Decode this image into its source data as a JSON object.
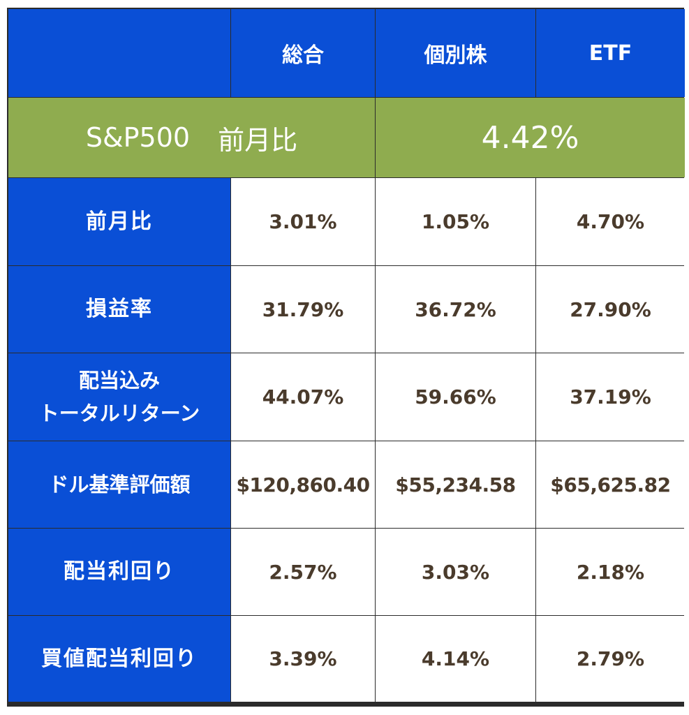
{
  "header": {
    "col_total": "総合",
    "col_stocks": "個別株",
    "col_etf": "ETF"
  },
  "benchmark": {
    "name": "S&P500",
    "label": "前月比",
    "value": "4.42%"
  },
  "rows": [
    {
      "label": "前月比",
      "total": "3.01%",
      "stocks": "1.05%",
      "etf": "4.70%"
    },
    {
      "label": "損益率",
      "total": "31.79%",
      "stocks": "36.72%",
      "etf": "27.90%"
    },
    {
      "label": "配当込み\nトータルリターン",
      "total": "44.07%",
      "stocks": "59.66%",
      "etf": "37.19%"
    },
    {
      "label": "ドル基準評価額",
      "total": "$120,860.40",
      "stocks": "$55,234.58",
      "etf": "$65,625.82"
    },
    {
      "label": "配当利回り",
      "total": "2.57%",
      "stocks": "3.03%",
      "etf": "2.18%"
    },
    {
      "label": "買値配当利回り",
      "total": "3.39%",
      "stocks": "4.14%",
      "etf": "2.79%"
    }
  ],
  "colors": {
    "header_blue": "#0a4fd6",
    "benchmark_green": "#8fac4f",
    "value_text": "#4a3b2c",
    "grid_line": "#2b2b2b"
  }
}
